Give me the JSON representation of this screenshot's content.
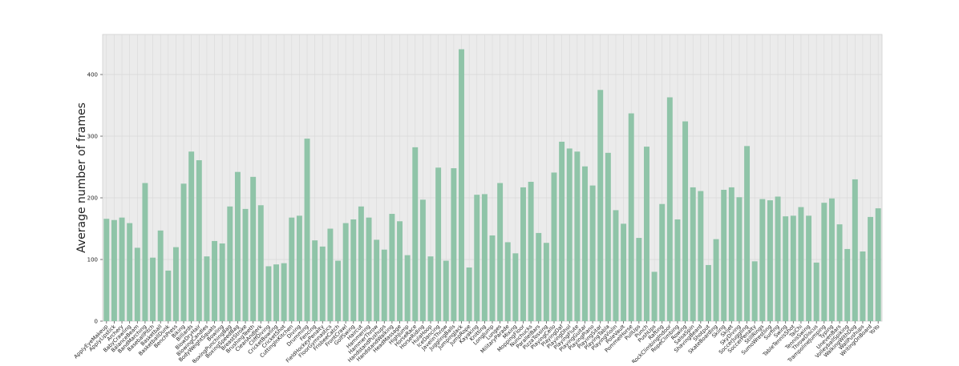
{
  "chart_data": {
    "type": "bar",
    "title": "",
    "xlabel": "",
    "ylabel": "Average number of frames",
    "ylim": [
      0,
      465
    ],
    "yticks": [
      0,
      100,
      200,
      300,
      400
    ],
    "grid": true,
    "legend": "none",
    "colors": {
      "bar": "#8fc4a8",
      "plot_bg": "#ebebeb",
      "grid": "#d9d9d9"
    },
    "categories": [
      "ApplyEyeMakeup",
      "ApplyLipstick",
      "Archery",
      "BabyCrawling",
      "BalanceBeam",
      "BandMarching",
      "BaseballPitch",
      "Basketball",
      "BasketballDunk",
      "BenchPress",
      "Biking",
      "Billiards",
      "BlowDryHair",
      "BlowingCandles",
      "BodyWeightSquats",
      "Bowling",
      "BoxingPunchingBag",
      "BoxingSpeedBag",
      "BreastStroke",
      "BrushingTeeth",
      "CleanAndJerk",
      "CliffDiving",
      "CricketBowling",
      "CricketShot",
      "CuttingInKitchen",
      "Diving",
      "Drumming",
      "Fencing",
      "FieldHockeyPenalty",
      "FloorGymnastics",
      "FrisbeeCatch",
      "FrontCrawl",
      "GolfSwing",
      "Haircut",
      "Hammering",
      "HammerThrow",
      "HandstandPushups",
      "HandstandWalking",
      "HeadMassage",
      "HighJump",
      "HorseRace",
      "HorseRiding",
      "HulaHoop",
      "IceDancing",
      "JavelinThrow",
      "JugglingBalls",
      "JumpingJack",
      "JumpRope",
      "Kayaking",
      "Knitting",
      "LongJump",
      "Lunges",
      "MilitaryParade",
      "Mixing",
      "MoppingFloor",
      "Nunchucks",
      "ParallelBars",
      "PizzaTossing",
      "PlayingCello",
      "PlayingDaf",
      "PlayingDhol",
      "PlayingFlute",
      "PlayingGuitar",
      "PlayingPiano",
      "PlayingSitar",
      "PlayingTabla",
      "PlayingViolin",
      "PoleVault",
      "PommelHorse",
      "PullUps",
      "Punch",
      "PushUps",
      "Rafting",
      "RockClimbingIndoor",
      "RopeClimbing",
      "Rowing",
      "SalsaSpin",
      "ShavingBeard",
      "Shotput",
      "SkateBoarding",
      "Skiing",
      "Skijet",
      "SkyDiving",
      "SoccerJuggling",
      "SoccerPenalty",
      "StillRings",
      "SumoWrestling",
      "Surfing",
      "Swing",
      "TableTennisShot",
      "TaiChi",
      "TennisSwing",
      "ThrowDiscus",
      "TrampolineJumping",
      "Typing",
      "UnevenBars",
      "VolleyballSpiking",
      "WalkingWithDog",
      "WallPushups",
      "WritingOnBoard",
      "YoYo"
    ],
    "values": [
      166,
      164,
      168,
      159,
      119,
      224,
      103,
      147,
      82,
      120,
      223,
      275,
      261,
      105,
      130,
      126,
      186,
      242,
      182,
      234,
      188,
      89,
      92,
      94,
      168,
      171,
      296,
      131,
      121,
      150,
      98,
      159,
      165,
      186,
      168,
      132,
      116,
      174,
      162,
      107,
      282,
      197,
      105,
      249,
      98,
      248,
      441,
      87,
      205,
      206,
      139,
      224,
      128,
      110,
      217,
      226,
      143,
      127,
      241,
      291,
      280,
      275,
      251,
      220,
      375,
      273,
      180,
      158,
      337,
      135,
      283,
      80,
      190,
      363,
      165,
      324,
      217,
      211,
      91,
      133,
      213,
      217,
      201,
      284,
      97,
      198,
      196,
      202,
      170,
      171,
      185,
      171,
      95,
      192,
      199,
      157,
      117,
      230,
      113,
      169,
      183
    ]
  }
}
